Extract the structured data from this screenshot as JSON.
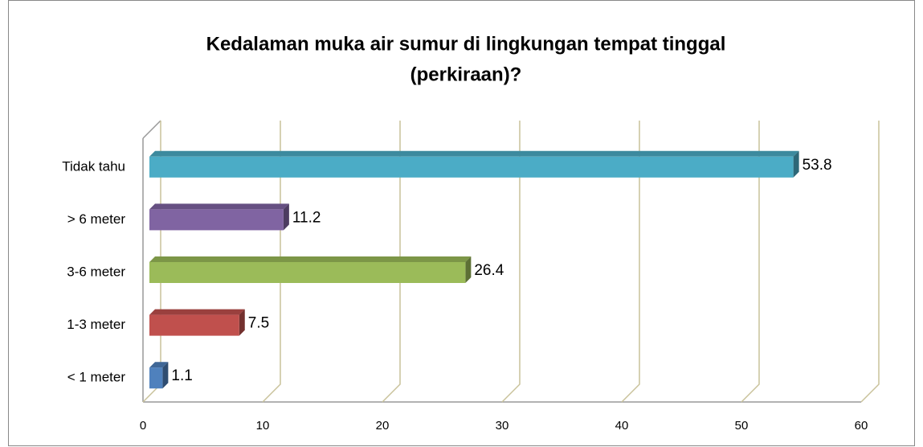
{
  "chart_data": {
    "type": "bar3d",
    "orientation": "horizontal",
    "title": [
      "Kedalaman muka air sumur di lingkungan tempat tinggal",
      "(perkiraan)?"
    ],
    "categories": [
      "Tidak tahu",
      "> 6 meter",
      "3-6 meter",
      "1-3 meter",
      "< 1 meter"
    ],
    "values": [
      53.8,
      11.2,
      26.4,
      7.5,
      1.1
    ],
    "colors": [
      "#4bacc6",
      "#8064a2",
      "#9bbb59",
      "#c0504d",
      "#4f81bd"
    ],
    "xlim": [
      0,
      60
    ],
    "xticks": [
      0,
      10,
      20,
      30,
      40,
      50,
      60
    ],
    "grid": true
  }
}
